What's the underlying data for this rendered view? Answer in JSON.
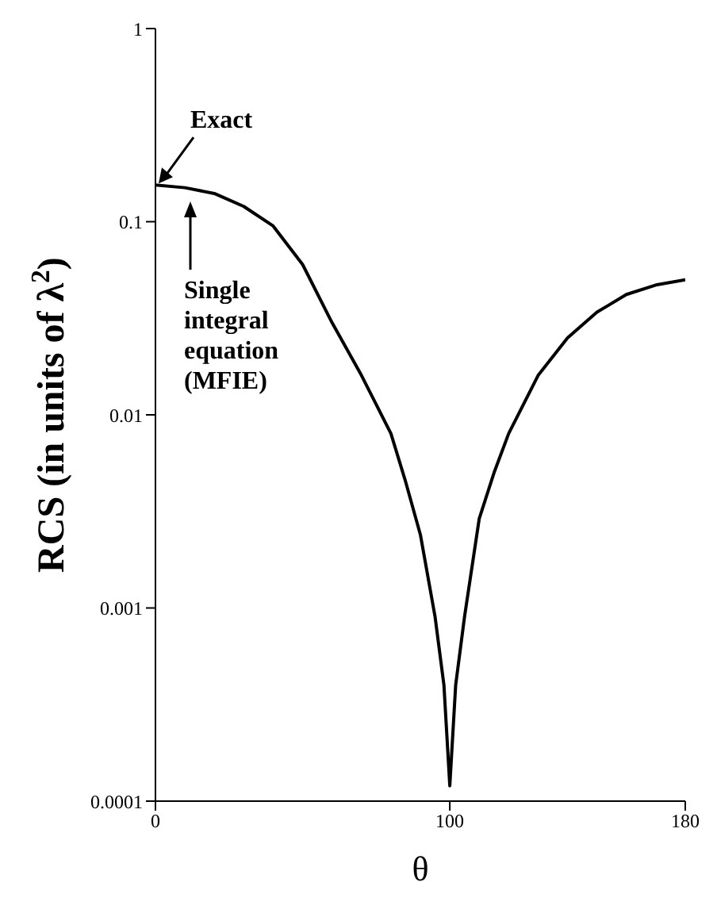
{
  "chart_data": {
    "type": "line",
    "xlabel": "θ",
    "ylabel": "RCS (in units of λ$^{2}$)",
    "x": [
      0,
      10,
      20,
      30,
      40,
      50,
      60,
      70,
      80,
      85,
      90,
      95,
      98,
      100,
      102,
      105,
      110,
      115,
      120,
      130,
      140,
      150,
      160,
      170,
      180
    ],
    "series": [
      {
        "color": "#000000",
        "values": [
          0.155,
          0.15,
          0.14,
          0.12,
          0.095,
          0.06,
          0.03,
          0.016,
          0.008,
          0.0045,
          0.0024,
          0.0009,
          0.0004,
          0.00012,
          0.0004,
          0.0009,
          0.0029,
          0.005,
          0.008,
          0.016,
          0.025,
          0.034,
          0.042,
          0.047,
          0.05
        ]
      }
    ],
    "xlim": [
      0,
      180
    ],
    "xticks": [
      0,
      100,
      180
    ],
    "ylim": [
      0.0001,
      1
    ],
    "yticks": [
      0.0001,
      0.001,
      0.01,
      0.1,
      1
    ],
    "log": "y",
    "grid": false,
    "marker": "none",
    "line_style": "solid",
    "annotations": [
      {
        "text": "Exact",
        "x": 0,
        "y": 0.155
      },
      "Single integral equation (MFIE)"
    ]
  }
}
